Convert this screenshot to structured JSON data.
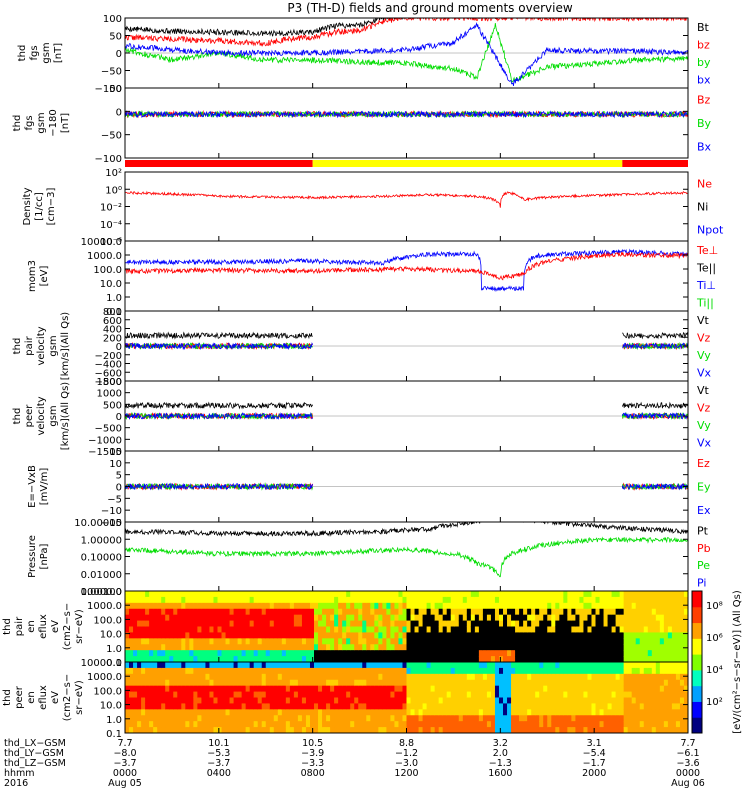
{
  "title": "P3 (TH-D) fields and ground moments overview",
  "colors": {
    "black": "#000000",
    "red": "#ff0000",
    "green": "#00dd00",
    "blue": "#0000ff",
    "yellow": "#ffff00"
  },
  "panels": [
    {
      "id": "fgs-gsm",
      "ylabel": [
        "thd",
        "fgs",
        "gsm",
        "[nT]"
      ],
      "scale": "linear",
      "ylim": [
        -100,
        100
      ],
      "ticks": [
        "100",
        "50",
        "0",
        "−50",
        "−100"
      ],
      "legend": [
        [
          "Bt",
          "black"
        ],
        [
          "bz",
          "red"
        ],
        [
          "by",
          "green"
        ],
        [
          "bx",
          "blue"
        ]
      ]
    },
    {
      "id": "fgs-gsm-180",
      "ylabel": [
        "thd",
        "fgs",
        "gsm",
        "−180",
        "[nT]"
      ],
      "scale": "linear",
      "ylim": [
        -125,
        75
      ],
      "ticks": [
        "50",
        "0",
        "−50",
        "−100"
      ],
      "legend": [
        [
          "Bz",
          "red"
        ],
        [
          "By",
          "green"
        ],
        [
          "Bx",
          "blue"
        ]
      ]
    },
    {
      "id": "density",
      "ylabel": [
        "Density",
        "[1/cc]",
        "[cm−3]"
      ],
      "scale": "log",
      "ylim": [
        -7,
        3
      ],
      "ticks": [
        "10²",
        "10⁰",
        "10⁻²",
        "10⁻⁴",
        "10⁻⁶"
      ],
      "legend": [
        [
          "Ne",
          "red"
        ],
        [
          "Ni",
          "black"
        ],
        [
          "Npot",
          "blue"
        ]
      ]
    },
    {
      "id": "temperature",
      "ylabel": [
        "mom3",
        "[eV]"
      ],
      "scale": "log",
      "ylim": [
        -1,
        4.3
      ],
      "ticks": [
        "10000.0",
        "1000.0",
        "100.0",
        "10.0",
        "1.0",
        "0.1"
      ],
      "legend": [
        [
          "Te⊥",
          "red"
        ],
        [
          "Te||",
          "black"
        ],
        [
          "Ti⊥",
          "blue"
        ],
        [
          "Ti||",
          "green"
        ]
      ]
    },
    {
      "id": "pair-velocity",
      "ylabel": [
        "thd",
        "pair",
        "velocity",
        "gsm",
        "[km/s](All Qs)"
      ],
      "scale": "linear",
      "ylim": [
        -800,
        800
      ],
      "ticks": [
        "800",
        "600",
        "400",
        "200",
        "0",
        "−200",
        "−400",
        "−600",
        "−800"
      ],
      "legend": [
        [
          "Vt",
          "black"
        ],
        [
          "Vz",
          "red"
        ],
        [
          "Vy",
          "green"
        ],
        [
          "Vx",
          "blue"
        ]
      ]
    },
    {
      "id": "peer-velocity",
      "ylabel": [
        "thd",
        "peer",
        "velocity",
        "gsm",
        "[km/s](All Qs)"
      ],
      "scale": "linear",
      "ylim": [
        -1500,
        1500
      ],
      "ticks": [
        "1500",
        "1000",
        "500",
        "0",
        "−500",
        "−1000",
        "−1500"
      ],
      "legend": [
        [
          "Vt",
          "black"
        ],
        [
          "Vz",
          "red"
        ],
        [
          "Vy",
          "green"
        ],
        [
          "Vx",
          "blue"
        ]
      ]
    },
    {
      "id": "efield",
      "ylabel": [
        "E=−VxB",
        "[mV/m]"
      ],
      "scale": "linear",
      "ylim": [
        -15,
        15
      ],
      "ticks": [
        "15",
        "10",
        "5",
        "0",
        "−5",
        "−10",
        "−15"
      ],
      "legend": [
        [
          "Ez",
          "red"
        ],
        [
          "Ey",
          "green"
        ],
        [
          "Ex",
          "blue"
        ]
      ]
    },
    {
      "id": "pressure",
      "ylabel": [
        "Pressure",
        "[nPa]"
      ],
      "scale": "log",
      "ylim": [
        -4,
        1
      ],
      "ticks": [
        "10.00000",
        "1.00000",
        "0.10000",
        "0.01000",
        "0.00100"
      ],
      "legend": [
        [
          "Pt",
          "black"
        ],
        [
          "Pb",
          "red"
        ],
        [
          "Pe",
          "green"
        ],
        [
          "Pi",
          "blue"
        ]
      ]
    },
    {
      "id": "pair-spec",
      "ylabel": [
        "thd",
        "pair",
        "en",
        "eflux",
        "eV",
        "(cm2−s−",
        "sr−eV)"
      ],
      "scale": "log",
      "ylim": [
        -1,
        4
      ],
      "ticks": [
        "10000.0",
        "1000.0",
        "100.0",
        "10.0",
        "1.0",
        "0.1"
      ],
      "legend": []
    },
    {
      "id": "peer-spec",
      "ylabel": [
        "thd",
        "peer",
        "en",
        "eflux",
        "eV",
        "(cm2−s−",
        "sr−eV)"
      ],
      "scale": "log",
      "ylim": [
        -1,
        4
      ],
      "ticks": [
        "10000.0",
        "1000.0",
        "100.0",
        "10.0",
        "1.0",
        "0.1"
      ],
      "legend": []
    }
  ],
  "colorbar": {
    "label": "[eV/(cm²−s−sr−eV)] (All Qs)",
    "ticks": [
      "10⁸",
      "10⁶",
      "10⁴",
      "10²"
    ]
  },
  "time_axis": {
    "rows": [
      {
        "label": "thd_LX−GSM",
        "values": [
          "7.7",
          "10.1",
          "10.5",
          "8.8",
          "3.2",
          "3.1",
          "7.7"
        ]
      },
      {
        "label": "thd_LY−GSM",
        "values": [
          "−8.0",
          "−5.3",
          "−3.9",
          "−1.2",
          "2.0",
          "−5.4",
          "−6.1"
        ]
      },
      {
        "label": "thd_LZ−GSM",
        "values": [
          "−3.7",
          "−3.7",
          "−3.3",
          "−3.0",
          "−1.3",
          "−1.7",
          "−3.6"
        ]
      },
      {
        "label": "hhmm",
        "values": [
          "0000",
          "0400",
          "0800",
          "1200",
          "1600",
          "2000",
          "0000"
        ]
      },
      {
        "label": "2016",
        "values": [
          "Aug 05",
          "",
          "",
          "",
          "",
          "",
          "Aug 06"
        ]
      }
    ],
    "hours": [
      0,
      4,
      8,
      12,
      16,
      20,
      24
    ]
  },
  "mode_bar": [
    {
      "start": 0,
      "end": 8,
      "color": "red"
    },
    {
      "start": 8,
      "end": 21.2,
      "color": "yellow"
    },
    {
      "start": 21.2,
      "end": 24,
      "color": "red"
    }
  ],
  "chart_data": {
    "type": "line",
    "title": "P3 (TH-D) fields and ground moments overview",
    "x_units": "hours of 2016-08-05",
    "x_range": [
      0,
      24
    ],
    "series": [
      {
        "panel": "fgs-gsm",
        "name": "Bt",
        "color": "black",
        "points": [
          [
            0,
            70
          ],
          [
            2,
            62
          ],
          [
            4,
            60
          ],
          [
            6,
            55
          ],
          [
            8,
            60
          ],
          [
            9,
            78
          ],
          [
            10,
            80
          ],
          [
            11,
            100
          ],
          [
            13,
            110
          ],
          [
            14,
            115
          ]
        ]
      },
      {
        "panel": "fgs-gsm",
        "name": "bz",
        "color": "red",
        "points": [
          [
            0,
            45
          ],
          [
            2,
            40
          ],
          [
            4,
            35
          ],
          [
            6,
            28
          ],
          [
            7,
            40
          ],
          [
            8,
            45
          ],
          [
            9,
            60
          ],
          [
            10,
            65
          ],
          [
            11,
            90
          ],
          [
            12,
            100
          ]
        ]
      },
      {
        "panel": "fgs-gsm",
        "name": "by",
        "color": "green",
        "points": [
          [
            0,
            10
          ],
          [
            2,
            -20
          ],
          [
            4,
            0
          ],
          [
            6,
            -20
          ],
          [
            8,
            -20
          ],
          [
            10,
            -25
          ],
          [
            12,
            -30
          ],
          [
            14,
            -45
          ],
          [
            15,
            -70
          ],
          [
            15.8,
            80
          ],
          [
            16.5,
            -80
          ],
          [
            18,
            -40
          ],
          [
            20,
            -30
          ],
          [
            22,
            -20
          ],
          [
            24,
            -15
          ]
        ]
      },
      {
        "panel": "fgs-gsm",
        "name": "bx",
        "color": "blue",
        "points": [
          [
            0,
            20
          ],
          [
            4,
            0
          ],
          [
            8,
            0
          ],
          [
            10,
            5
          ],
          [
            12,
            10
          ],
          [
            14,
            30
          ],
          [
            15,
            80
          ],
          [
            16.5,
            -90
          ],
          [
            18,
            8
          ],
          [
            20,
            5
          ],
          [
            22,
            5
          ],
          [
            24,
            0
          ]
        ]
      },
      {
        "panel": "density",
        "name": "Ne",
        "color": "red",
        "points": [
          [
            0,
            1
          ],
          [
            4,
            0.3
          ],
          [
            8,
            0.2
          ],
          [
            11,
            0.3
          ],
          [
            13,
            0.5
          ],
          [
            15,
            0.3
          ],
          [
            16,
            0.01
          ],
          [
            16.3,
            1
          ],
          [
            17,
            0.1
          ],
          [
            19,
            0.3
          ],
          [
            21,
            0.5
          ],
          [
            24,
            1
          ]
        ]
      },
      {
        "panel": "temperature",
        "name": "Ti⊥",
        "color": "blue",
        "points": [
          [
            0,
            500
          ],
          [
            4,
            500
          ],
          [
            8,
            600
          ],
          [
            11,
            400
          ],
          [
            13,
            2000
          ],
          [
            15,
            2000
          ],
          [
            15.2,
            5
          ],
          [
            17,
            5
          ],
          [
            17.5,
            1500
          ],
          [
            21,
            3000
          ],
          [
            24,
            2000
          ]
        ]
      },
      {
        "panel": "temperature",
        "name": "Te⊥",
        "color": "red",
        "points": [
          [
            0,
            100
          ],
          [
            4,
            120
          ],
          [
            8,
            110
          ],
          [
            12,
            150
          ],
          [
            15,
            100
          ],
          [
            16,
            30
          ],
          [
            17,
            60
          ],
          [
            19,
            1000
          ],
          [
            21,
            2000
          ],
          [
            24,
            1500
          ]
        ]
      },
      {
        "panel": "pressure",
        "name": "Pt",
        "color": "black",
        "points": [
          [
            0,
            2
          ],
          [
            4,
            1.5
          ],
          [
            8,
            1.5
          ],
          [
            11,
            2
          ],
          [
            13,
            3
          ],
          [
            15,
            10
          ],
          [
            16,
            20
          ],
          [
            18,
            10
          ],
          [
            20,
            5
          ],
          [
            22,
            3
          ],
          [
            24,
            2
          ]
        ]
      },
      {
        "panel": "pressure",
        "name": "Pe",
        "color": "green",
        "points": [
          [
            0,
            0.1
          ],
          [
            4,
            0.05
          ],
          [
            8,
            0.05
          ],
          [
            12,
            0.1
          ],
          [
            14,
            0.05
          ],
          [
            15,
            0.01
          ],
          [
            16,
            0.001
          ],
          [
            17,
            0.1
          ],
          [
            20,
            0.5
          ],
          [
            24,
            0.5
          ]
        ]
      }
    ]
  }
}
